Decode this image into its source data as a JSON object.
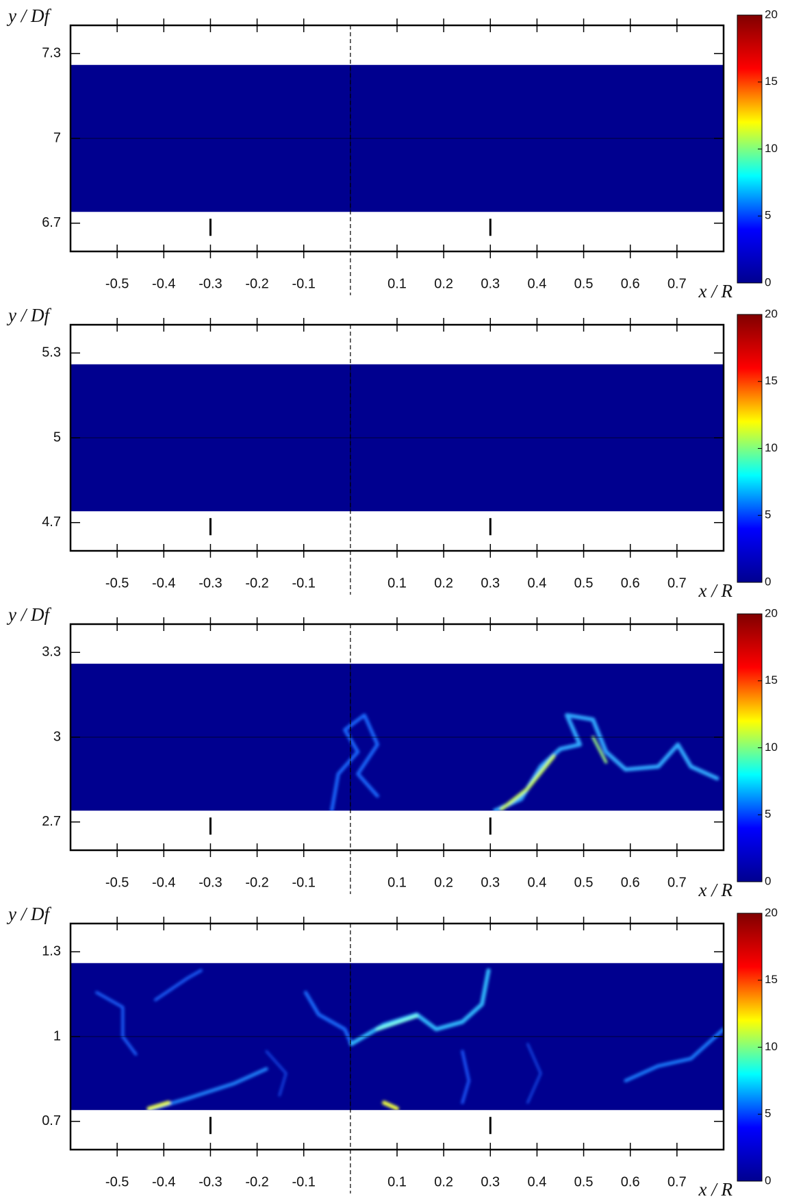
{
  "chart_data": [
    {
      "type": "heatmap",
      "xlabel": "x / R",
      "ylabel": "y / Df",
      "xlim": [
        -0.6,
        0.8
      ],
      "xticks": [
        -0.5,
        -0.4,
        -0.3,
        -0.2,
        -0.1,
        0.1,
        0.2,
        0.3,
        0.4,
        0.5,
        0.6,
        0.7
      ],
      "ylim": [
        6.6,
        7.4
      ],
      "yticks": [
        7.3,
        7,
        6.7
      ],
      "field_ylim": [
        6.74,
        7.26
      ],
      "markers": [
        -0.3,
        0.3
      ],
      "colorbar_lim": [
        0,
        20
      ],
      "colorbar_ticks": [
        0,
        5,
        10,
        15,
        20
      ],
      "colormap": [
        "#00008f",
        "#0000ff",
        "#00ffff",
        "#ffff00",
        "#ff0000",
        "#800000"
      ]
    },
    {
      "type": "heatmap",
      "xlabel": "x / R",
      "ylabel": "y / Df",
      "xlim": [
        -0.6,
        0.8
      ],
      "xticks": [
        -0.5,
        -0.4,
        -0.3,
        -0.2,
        -0.1,
        0.1,
        0.2,
        0.3,
        0.4,
        0.5,
        0.6,
        0.7
      ],
      "ylim": [
        4.6,
        5.4
      ],
      "yticks": [
        5.3,
        5,
        4.7
      ],
      "field_ylim": [
        4.74,
        5.26
      ],
      "markers": [
        -0.3,
        0.3
      ],
      "colorbar_lim": [
        0,
        20
      ],
      "colorbar_ticks": [
        0,
        5,
        10,
        15,
        20
      ],
      "colormap": [
        "#00008f",
        "#0000ff",
        "#00ffff",
        "#ffff00",
        "#ff0000",
        "#800000"
      ]
    },
    {
      "type": "heatmap",
      "xlabel": "x / R",
      "ylabel": "y / Df",
      "xlim": [
        -0.6,
        0.8
      ],
      "xticks": [
        -0.5,
        -0.4,
        -0.3,
        -0.2,
        -0.1,
        0.1,
        0.2,
        0.3,
        0.4,
        0.5,
        0.6,
        0.7
      ],
      "ylim": [
        2.6,
        3.4
      ],
      "yticks": [
        3.3,
        3,
        2.7
      ],
      "field_ylim": [
        2.74,
        3.26
      ],
      "markers": [
        -0.3,
        0.3
      ],
      "colorbar_lim": [
        0,
        20
      ],
      "colorbar_ticks": [
        0,
        5,
        10,
        15,
        20
      ],
      "colormap": [
        "#00008f",
        "#0000ff",
        "#00ffff",
        "#ffff00",
        "#ff0000",
        "#800000"
      ]
    },
    {
      "type": "heatmap",
      "xlabel": "x / R",
      "ylabel": "y / Df",
      "xlim": [
        -0.6,
        0.8
      ],
      "xticks": [
        -0.5,
        -0.4,
        -0.3,
        -0.2,
        -0.1,
        0.1,
        0.2,
        0.3,
        0.4,
        0.5,
        0.6,
        0.7
      ],
      "ylim": [
        0.6,
        1.4
      ],
      "yticks": [
        1.3,
        1,
        0.7
      ],
      "field_ylim": [
        0.74,
        1.26
      ],
      "markers": [
        -0.3,
        0.3
      ],
      "colorbar_lim": [
        0,
        20
      ],
      "colorbar_ticks": [
        0,
        5,
        10,
        15,
        20
      ],
      "colormap": [
        "#00008f",
        "#0000ff",
        "#00ffff",
        "#ffff00",
        "#ff0000",
        "#800000"
      ]
    }
  ]
}
